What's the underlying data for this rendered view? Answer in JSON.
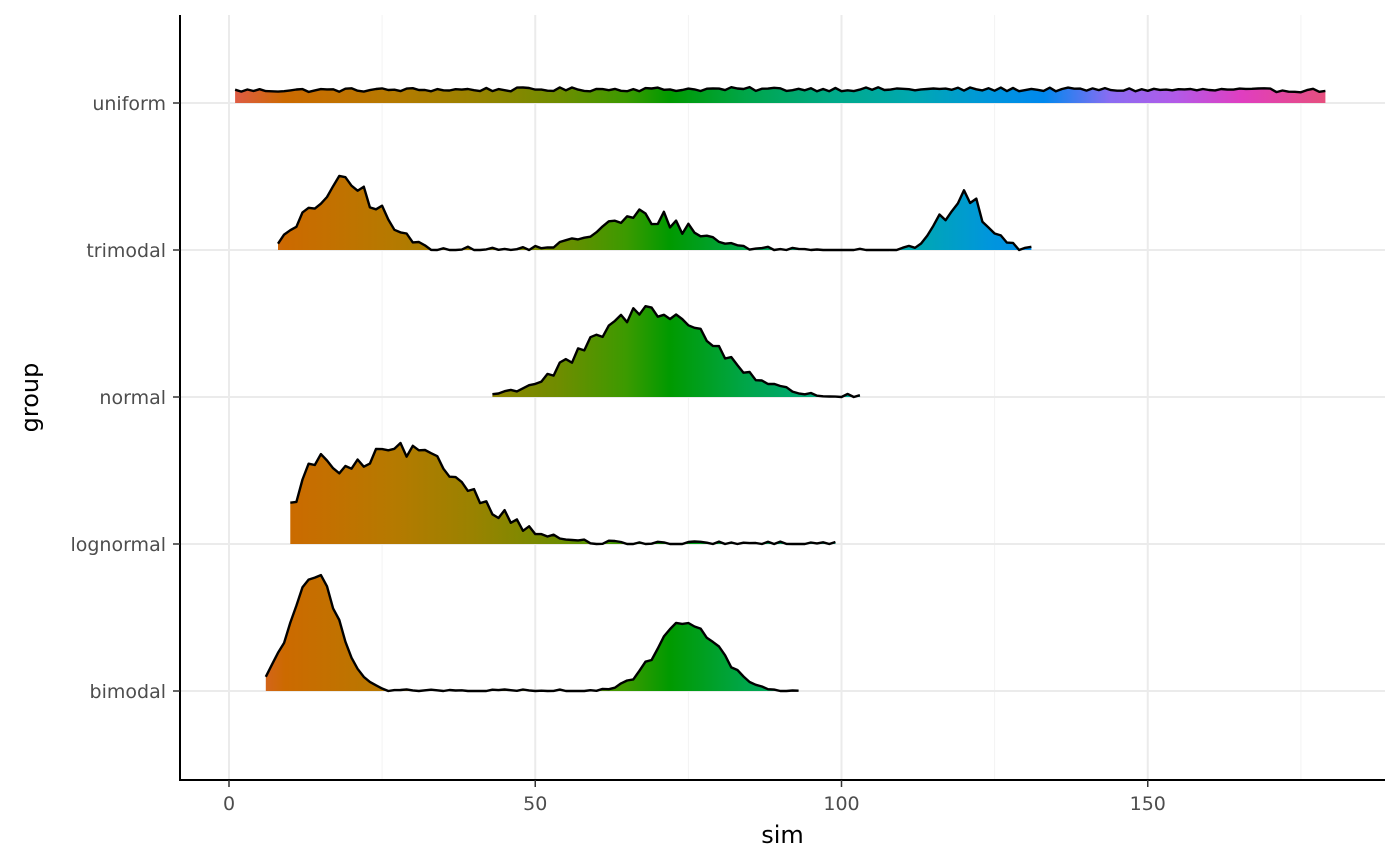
{
  "chart_data": {
    "type": "ridgeline",
    "xlabel": "sim",
    "ylabel": "group",
    "xlim": [
      -8,
      189
    ],
    "x_ticks": [
      0,
      50,
      100,
      150
    ],
    "x_tick_labels": [
      "0",
      "50",
      "100",
      "150"
    ],
    "fill": "gradient along x (hue spectrum)",
    "grid": true,
    "groups": [
      {
        "name": "uniform",
        "x_range": [
          1,
          179
        ],
        "peaks": [
          {
            "x": 90,
            "height": 0.15,
            "sd": 200
          }
        ],
        "noise": 0.045
      },
      {
        "name": "trimodal",
        "x_range": [
          8,
          131
        ],
        "peaks": [
          {
            "x": 19,
            "height": 0.72,
            "sd": 5.5
          },
          {
            "x": 68,
            "height": 0.36,
            "sd": 7.5
          },
          {
            "x": 120,
            "height": 0.55,
            "sd": 3.6
          }
        ],
        "noise": 0.1
      },
      {
        "name": "normal",
        "x_range": [
          43,
          103
        ],
        "peaks": [
          {
            "x": 69,
            "height": 0.95,
            "sd": 10
          }
        ],
        "noise": 0.08
      },
      {
        "name": "lognormal",
        "x_range": [
          10,
          99
        ],
        "peaks": [
          {
            "x": 14,
            "height": 0.45,
            "sd": 2.5
          },
          {
            "x": 28,
            "height": 1.02,
            "sd": 11
          }
        ],
        "noise": 0.08
      },
      {
        "name": "bimodal",
        "x_range": [
          6,
          93
        ],
        "peaks": [
          {
            "x": 14,
            "height": 1.25,
            "sd": 4
          },
          {
            "x": 75,
            "height": 0.75,
            "sd": 5
          }
        ],
        "noise": 0.05
      }
    ]
  }
}
